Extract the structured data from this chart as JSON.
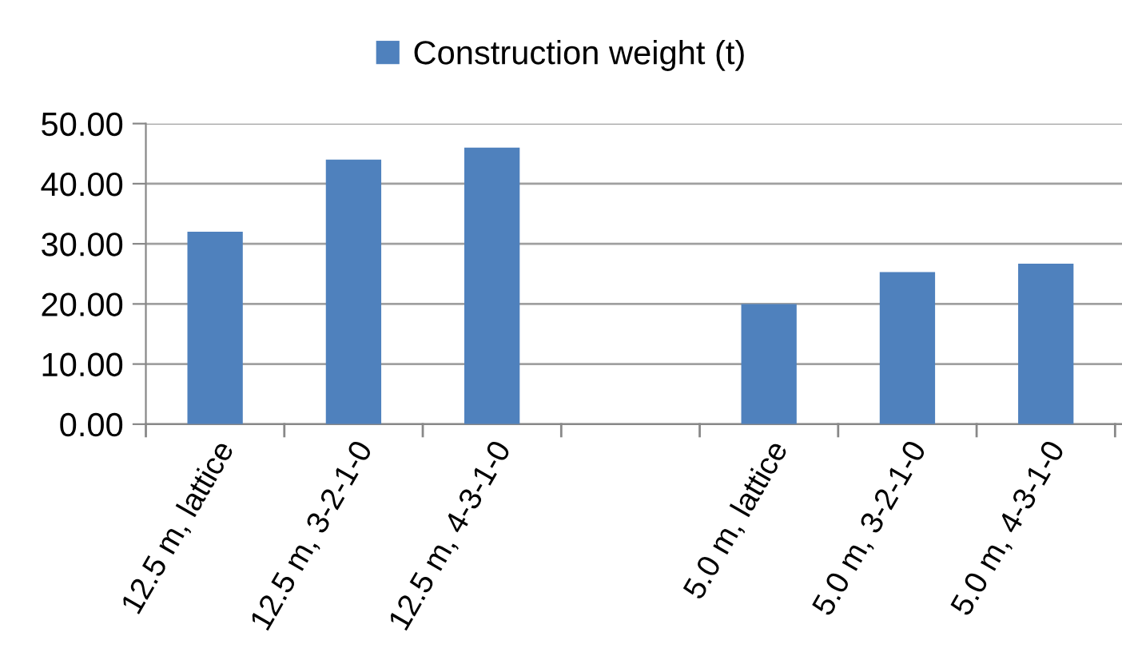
{
  "chart_data": {
    "type": "bar",
    "categories": [
      "12.5 m, lattice",
      "12.5 m, 3-2-1-0",
      "12.5 m, 4-3-1-0",
      null,
      "5.0 m, lattice",
      "5.0 m, 3-2-1-0",
      "5.0 m, 4-3-1-0"
    ],
    "series": [
      {
        "name": "Construction weight (t)",
        "color": "#4f81bd",
        "values": [
          32.0,
          44.0,
          46.0,
          null,
          20.0,
          25.3,
          26.7
        ]
      }
    ],
    "ylim": [
      0,
      50
    ],
    "yticks": [
      {
        "value": 0,
        "label": "0.00"
      },
      {
        "value": 10,
        "label": "10.00"
      },
      {
        "value": 20,
        "label": "20.00"
      },
      {
        "value": 30,
        "label": "30.00"
      },
      {
        "value": 40,
        "label": "40.00"
      },
      {
        "value": 50,
        "label": "50.00"
      }
    ],
    "grid": "y",
    "legend": "top"
  }
}
